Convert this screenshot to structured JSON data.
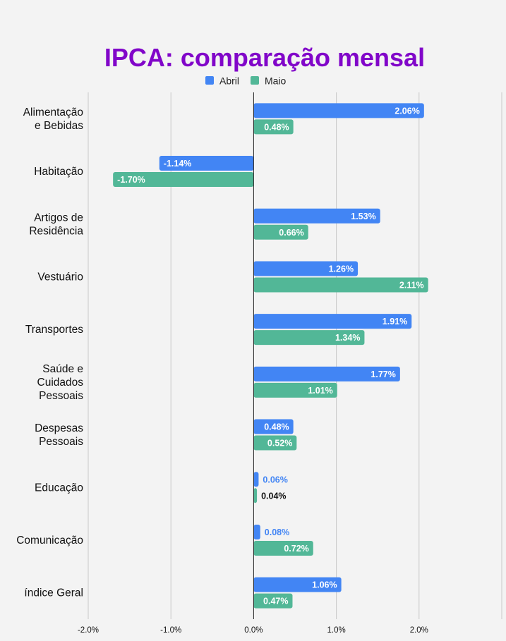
{
  "chart_data": {
    "type": "bar",
    "orientation": "horizontal",
    "title": "IPCA: comparação mensal",
    "xlabel": "",
    "ylabel": "",
    "xlim": [
      -2.0,
      3.0
    ],
    "x_ticks": [
      -2.0,
      -1.0,
      0.0,
      1.0,
      2.0
    ],
    "x_tick_labels": [
      "-2.0%",
      "-1.0%",
      "0.0%",
      "1.0%",
      "2.0%"
    ],
    "grid": true,
    "legend_position": "top-center",
    "categories": [
      [
        "Alimentação",
        "e Bebidas"
      ],
      [
        "Habitação"
      ],
      [
        "Artigos de",
        "Residência"
      ],
      [
        "Vestuário"
      ],
      [
        "Transportes"
      ],
      [
        "Saúde e",
        "Cuidados",
        "Pessoais"
      ],
      [
        "Despesas",
        "Pessoais"
      ],
      [
        "Educação"
      ],
      [
        "Comunicação"
      ],
      [
        "índice Geral"
      ]
    ],
    "series": [
      {
        "name": "Abril",
        "color": "#4285f4",
        "values": [
          2.06,
          -1.14,
          1.53,
          1.26,
          1.91,
          1.77,
          0.48,
          0.06,
          0.08,
          1.06
        ],
        "labels": [
          "2.06%",
          "-1.14%",
          "1.53%",
          "1.26%",
          "1.91%",
          "1.77%",
          "0.48%",
          "0.06%",
          "0.08%",
          "1.06%"
        ]
      },
      {
        "name": "Maio",
        "color": "#52b797",
        "values": [
          0.48,
          -1.7,
          0.66,
          2.11,
          1.34,
          1.01,
          0.52,
          0.04,
          0.72,
          0.47
        ],
        "labels": [
          "0.48%",
          "-1.70%",
          "0.66%",
          "2.11%",
          "1.34%",
          "1.01%",
          "0.52%",
          "0.04%",
          "0.72%",
          "0.47%"
        ]
      }
    ]
  },
  "colors": {
    "title": "#8106c9",
    "background": "#f3f3f3",
    "grid": "#c8c8c8",
    "axis": "#222222",
    "inside_label": "#ffffff",
    "outside_label_dark": "#111111"
  }
}
